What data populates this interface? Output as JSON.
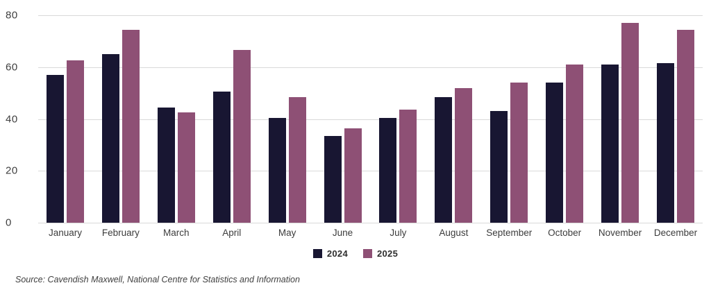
{
  "chart_data": {
    "type": "bar",
    "title": "",
    "categories": [
      "January",
      "February",
      "March",
      "April",
      "May",
      "June",
      "July",
      "August",
      "September",
      "October",
      "November",
      "December"
    ],
    "series": [
      {
        "name": "2024",
        "color": "#181632",
        "values": [
          57,
          65,
          44.5,
          50.5,
          40.5,
          33.5,
          40.5,
          48.5,
          43,
          54,
          61,
          61.5
        ]
      },
      {
        "name": "2025",
        "color": "#8E5075",
        "values": [
          62.5,
          74.5,
          42.5,
          66.5,
          48.5,
          36.5,
          43.5,
          52,
          54,
          61,
          77,
          74.5
        ]
      }
    ],
    "xlabel": "",
    "ylabel": "",
    "ylim": [
      0,
      80
    ],
    "yticks": [
      0,
      20,
      40,
      60,
      80
    ],
    "grid": true,
    "legend_position": "bottom-center"
  },
  "source_note": "Source: Cavendish Maxwell, National Centre for Statistics and Information",
  "colors": {
    "background": "#FFFFFF",
    "grid": "#D9D9D9",
    "axis_text": "#3F3F3F",
    "month_text": "#3C3C3C",
    "source_text": "#404040",
    "series_2024": "#181632",
    "series_2025": "#8E5075"
  }
}
